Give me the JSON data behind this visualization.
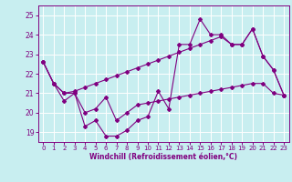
{
  "xlabel": "Windchill (Refroidissement éolien,°C)",
  "bg_color": "#c8eef0",
  "line_color": "#800080",
  "grid_color": "#ffffff",
  "xlim": [
    -0.5,
    23.5
  ],
  "ylim": [
    18.5,
    25.5
  ],
  "yticks": [
    19,
    20,
    21,
    22,
    23,
    24,
    25
  ],
  "xticks": [
    0,
    1,
    2,
    3,
    4,
    5,
    6,
    7,
    8,
    9,
    10,
    11,
    12,
    13,
    14,
    15,
    16,
    17,
    18,
    19,
    20,
    21,
    22,
    23
  ],
  "series1_x": [
    0,
    1,
    2,
    3,
    4,
    5,
    6,
    7,
    8,
    9,
    10,
    11,
    12,
    13,
    14,
    15,
    16,
    17,
    18,
    19,
    20,
    21,
    22,
    23
  ],
  "series1_y": [
    22.6,
    21.5,
    20.6,
    21.0,
    19.3,
    19.6,
    18.8,
    18.8,
    19.1,
    19.6,
    19.8,
    21.1,
    20.2,
    23.5,
    23.5,
    24.8,
    24.0,
    24.0,
    23.5,
    23.5,
    24.3,
    22.9,
    22.2,
    20.9
  ],
  "series2_x": [
    0,
    1,
    2,
    3,
    4,
    5,
    6,
    7,
    8,
    9,
    10,
    11,
    12,
    13,
    14,
    15,
    16,
    17,
    18,
    19,
    20,
    21,
    22,
    23
  ],
  "series2_y": [
    22.6,
    21.5,
    21.0,
    21.0,
    20.0,
    20.2,
    20.8,
    19.6,
    20.0,
    20.4,
    20.5,
    20.6,
    20.7,
    20.8,
    20.9,
    21.0,
    21.1,
    21.2,
    21.3,
    21.4,
    21.5,
    21.5,
    21.0,
    20.9
  ],
  "series3_x": [
    0,
    1,
    2,
    3,
    4,
    5,
    6,
    7,
    8,
    9,
    10,
    11,
    12,
    13,
    14,
    15,
    16,
    17,
    18,
    19,
    20,
    21,
    22,
    23
  ],
  "series3_y": [
    22.6,
    21.5,
    21.0,
    21.1,
    21.3,
    21.5,
    21.7,
    21.9,
    22.1,
    22.3,
    22.5,
    22.7,
    22.9,
    23.1,
    23.3,
    23.5,
    23.7,
    23.9,
    23.5,
    23.5,
    24.3,
    22.9,
    22.2,
    20.9
  ]
}
